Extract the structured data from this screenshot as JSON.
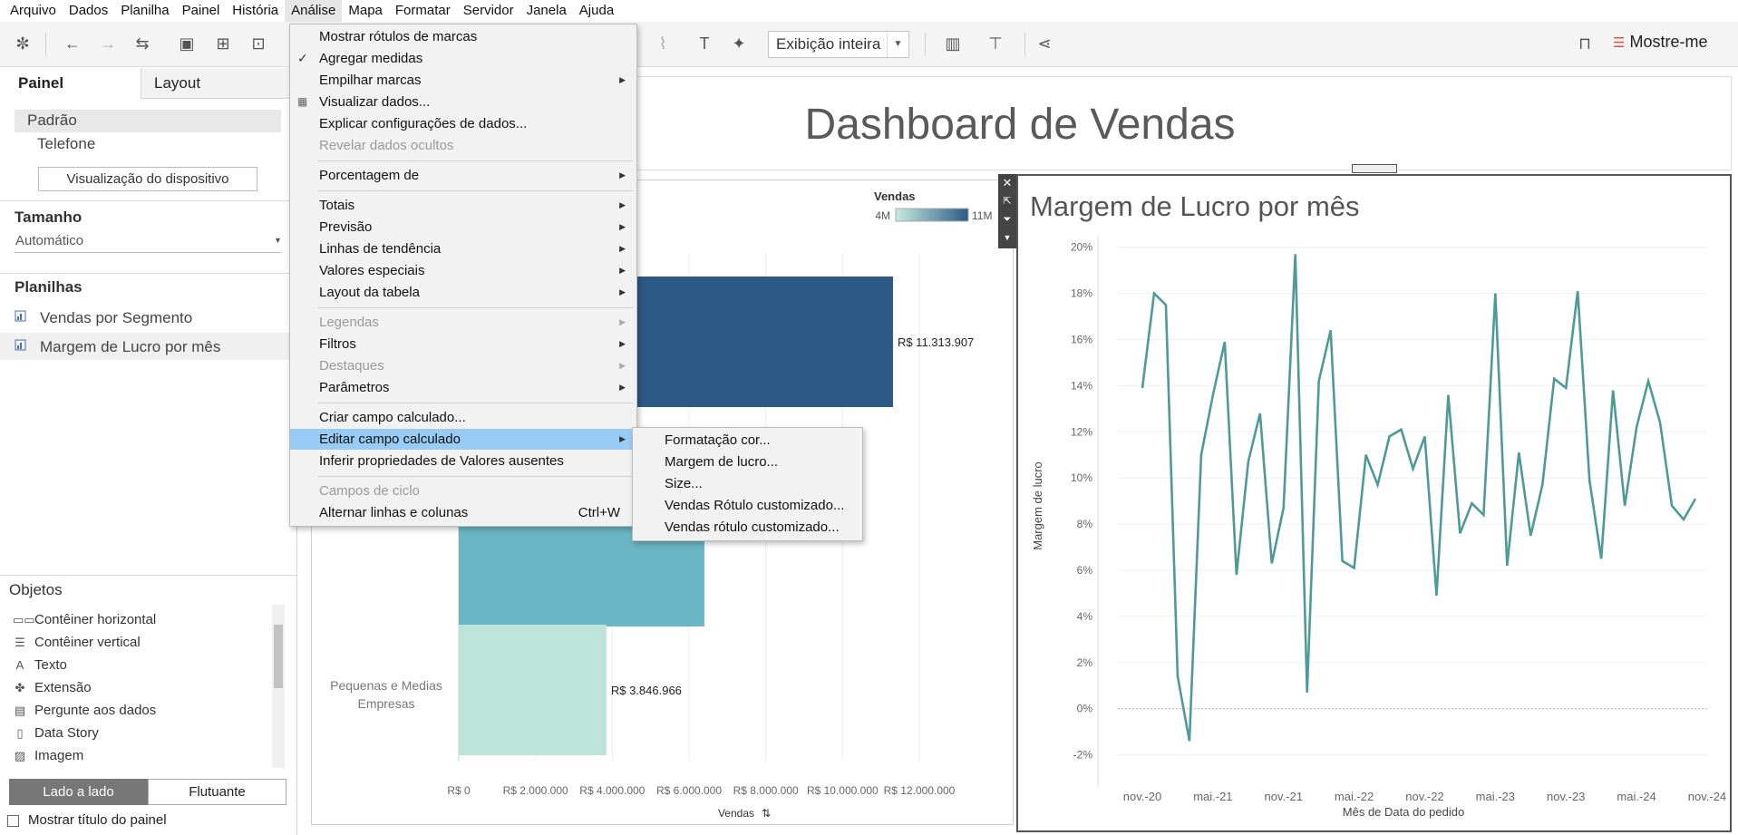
{
  "menubar": [
    "Arquivo",
    "Dados",
    "Planilha",
    "Painel",
    "História",
    "Análise",
    "Mapa",
    "Formatar",
    "Servidor",
    "Janela",
    "Ajuda"
  ],
  "toolbar": {
    "fit_label": "Exibição inteira",
    "showme_label": "Mostre-me"
  },
  "left_panel": {
    "tab_painel": "Painel",
    "tab_layout": "Layout",
    "device_padrao": "Padrão",
    "device_telefone": "Telefone",
    "device_button": "Visualização do dispositivo",
    "size_header": "Tamanho",
    "size_value": "Automático",
    "sheets_header": "Planilhas",
    "sheets": [
      "Vendas por Segmento",
      "Margem de Lucro por mês"
    ],
    "objects_header": "Objetos",
    "objects": [
      "Contêiner horizontal",
      "Contêiner vertical",
      "Texto",
      "Extensão",
      "Pergunte aos dados",
      "Data Story",
      "Imagem"
    ],
    "btn_tiled": "Lado a lado",
    "btn_floating": "Flutuante",
    "show_title": "Mostrar título do painel"
  },
  "dashboard": {
    "title": "Dashboard de Vendas"
  },
  "analysis_menu": [
    {
      "label": "Mostrar rótulos de marcas"
    },
    {
      "label": "Agregar medidas",
      "checked": true
    },
    {
      "label": "Empilhar marcas",
      "submenu": true
    },
    {
      "label": "Visualizar dados...",
      "icon": true
    },
    {
      "label": "Explicar configurações de dados..."
    },
    {
      "label": "Revelar dados ocultos",
      "disabled": true
    },
    {
      "sep": true
    },
    {
      "label": "Porcentagem de",
      "submenu": true
    },
    {
      "sep": true
    },
    {
      "label": "Totais",
      "submenu": true
    },
    {
      "label": "Previsão",
      "submenu": true
    },
    {
      "label": "Linhas de tendência",
      "submenu": true
    },
    {
      "label": "Valores especiais",
      "submenu": true
    },
    {
      "label": "Layout da tabela",
      "submenu": true
    },
    {
      "sep": true
    },
    {
      "label": "Legendas",
      "submenu": true,
      "disabled": true
    },
    {
      "label": "Filtros",
      "submenu": true
    },
    {
      "label": "Destaques",
      "submenu": true,
      "disabled": true
    },
    {
      "label": "Parâmetros",
      "submenu": true
    },
    {
      "sep": true
    },
    {
      "label": "Criar campo calculado..."
    },
    {
      "label": "Editar campo calculado",
      "submenu": true,
      "highlighted": true
    },
    {
      "label": "Inferir propriedades de Valores ausentes"
    },
    {
      "sep": true
    },
    {
      "label": "Campos de ciclo",
      "disabled": true
    },
    {
      "label": "Alternar linhas e colunas",
      "shortcut": "Ctrl+W"
    }
  ],
  "calc_submenu": [
    "Formatação cor...",
    "Margem de lucro...",
    "Size...",
    "Vendas Rótulo customizado...",
    "Vendas rótulo customizado..."
  ],
  "chart_data": [
    {
      "type": "bar",
      "title": "",
      "legend": {
        "title": "Vendas",
        "min_label": "4M",
        "max_label": "11M",
        "colors": [
          "#c6ebe0",
          "#2c5985"
        ]
      },
      "categories": [
        "",
        "",
        "Pequenas e Medias Empresas"
      ],
      "values": [
        11313907,
        6400000,
        3846966
      ],
      "data_labels": [
        "R$ 11.313.907",
        "",
        "R$ 3.846.966"
      ],
      "colors": [
        "#2c5985",
        "#6bb6c4",
        "#bde4d8"
      ],
      "xlabel": "Vendas",
      "xlim": [
        0,
        12000000
      ],
      "x_ticks": [
        "R$ 0",
        "R$ 2.000.000",
        "R$ 4.000.000",
        "R$ 6.000.000",
        "R$ 8.000.000",
        "R$ 10.000.000",
        "R$ 12.000.000"
      ]
    },
    {
      "type": "line",
      "title": "Margem de Lucro por mês",
      "xlabel": "Mês de Data do pedido",
      "ylabel": "Margem de lucro",
      "ylim": [
        -0.03,
        0.205
      ],
      "y_ticks": [
        "-2%",
        "0%",
        "2%",
        "4%",
        "6%",
        "8%",
        "10%",
        "12%",
        "14%",
        "16%",
        "18%",
        "20%"
      ],
      "x_ticks": [
        "nov.-20",
        "mai.-21",
        "nov.-21",
        "mai.-22",
        "nov.-22",
        "mai.-23",
        "nov.-23",
        "mai.-24",
        "nov.-24"
      ],
      "color": "#4e9a96",
      "values": [
        0.139,
        0.18,
        0.175,
        0.014,
        -0.014,
        0.11,
        0.136,
        0.159,
        0.058,
        0.107,
        0.128,
        0.063,
        0.087,
        0.197,
        0.007,
        0.142,
        0.164,
        0.064,
        0.061,
        0.11,
        0.097,
        0.118,
        0.121,
        0.104,
        0.118,
        0.049,
        0.136,
        0.076,
        0.089,
        0.084,
        0.18,
        0.062,
        0.111,
        0.075,
        0.097,
        0.143,
        0.139,
        0.181,
        0.099,
        0.065,
        0.138,
        0.088,
        0.122,
        0.142,
        0.124,
        0.088,
        0.082,
        0.091
      ]
    }
  ]
}
